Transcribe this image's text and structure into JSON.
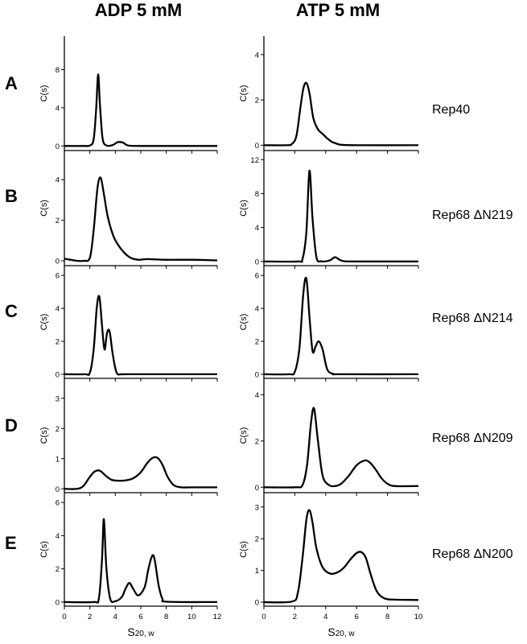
{
  "columns": [
    "ADP 5 mM",
    "ATP 5 mM"
  ],
  "rows": [
    {
      "letter": "A",
      "construct": "Rep40"
    },
    {
      "letter": "B",
      "construct": "Rep68 ΔN219"
    },
    {
      "letter": "C",
      "construct": "Rep68 ΔN214"
    },
    {
      "letter": "D",
      "construct": "Rep68 ΔN209"
    },
    {
      "letter": "E",
      "construct": "Rep68 ΔN200"
    }
  ],
  "y_axis_label": "C(s)",
  "x_axis_label": {
    "main": "S",
    "sub": "20, w"
  },
  "chart_data": {
    "type": "line",
    "grid": false,
    "xlabel": "S20, w",
    "ylabel": "C(s)",
    "columns": [
      {
        "title": "ADP 5 mM",
        "xlim": [
          0,
          12
        ],
        "xticks": [
          0,
          2,
          4,
          6,
          8,
          10,
          12
        ]
      },
      {
        "title": "ATP 5 mM",
        "xlim": [
          0,
          10
        ],
        "xticks": [
          0,
          2,
          4,
          6,
          8,
          10
        ]
      }
    ],
    "panels": [
      {
        "row": "A",
        "column": "ADP 5 mM",
        "construct": "Rep40",
        "ylim": [
          -0.4,
          11
        ],
        "yticks": [
          0,
          4,
          8
        ],
        "x": [
          0,
          1.5,
          2.0,
          2.3,
          2.5,
          2.65,
          2.8,
          3.0,
          3.3,
          3.8,
          4.2,
          4.6,
          5.0,
          6,
          8,
          12
        ],
        "y": [
          0,
          0,
          0.05,
          0.7,
          4.0,
          7.5,
          4.2,
          0.8,
          0.05,
          0.1,
          0.4,
          0.35,
          0.05,
          0,
          0,
          0
        ]
      },
      {
        "row": "A",
        "column": "ATP 5 mM",
        "construct": "Rep40",
        "ylim": [
          -0.2,
          4.6
        ],
        "yticks": [
          0,
          2,
          4
        ],
        "x": [
          0,
          1.5,
          1.8,
          2.1,
          2.35,
          2.55,
          2.75,
          2.95,
          3.2,
          3.5,
          3.8,
          4.1,
          4.4,
          4.7,
          5.0,
          6,
          10
        ],
        "y": [
          0,
          0,
          0.05,
          0.4,
          1.6,
          2.5,
          2.75,
          2.3,
          1.2,
          0.7,
          0.5,
          0.3,
          0.15,
          0.07,
          0.02,
          0,
          0
        ]
      },
      {
        "row": "B",
        "column": "ADP 5 mM",
        "construct": "Rep68 ΔN219",
        "ylim": [
          -0.2,
          5.2
        ],
        "yticks": [
          0,
          2,
          4
        ],
        "x": [
          0,
          0.5,
          1.0,
          1.5,
          2.0,
          2.3,
          2.6,
          2.85,
          3.1,
          3.4,
          3.8,
          4.2,
          4.7,
          5.2,
          5.8,
          6.5,
          8,
          10,
          12
        ],
        "y": [
          0.1,
          0.05,
          0.0,
          0.0,
          0.15,
          1.5,
          3.6,
          4.1,
          3.3,
          2.2,
          1.3,
          0.8,
          0.4,
          0.15,
          0.05,
          0.08,
          0.05,
          0.05,
          0.02
        ]
      },
      {
        "row": "B",
        "column": "ATP 5 mM",
        "construct": "Rep68 ΔN219",
        "ylim": [
          -0.4,
          12.5
        ],
        "yticks": [
          0,
          4,
          8,
          12
        ],
        "x": [
          0,
          2.2,
          2.5,
          2.75,
          2.95,
          3.15,
          3.4,
          3.7,
          4.0,
          4.3,
          4.6,
          4.9,
          5.2,
          6,
          10
        ],
        "y": [
          0,
          0,
          0.3,
          3.5,
          10.7,
          5.0,
          0.5,
          0.03,
          0.02,
          0.15,
          0.5,
          0.2,
          0.03,
          0,
          0
        ]
      },
      {
        "row": "C",
        "column": "ADP 5 mM",
        "construct": "Rep68 ΔN214",
        "ylim": [
          -0.2,
          6.3
        ],
        "yticks": [
          0,
          2,
          4,
          6
        ],
        "x": [
          0,
          1.6,
          2.0,
          2.3,
          2.55,
          2.75,
          2.95,
          3.15,
          3.35,
          3.55,
          3.8,
          4.1,
          4.5,
          5,
          12
        ],
        "y": [
          0,
          0,
          0.1,
          1.5,
          4.1,
          4.7,
          3.0,
          1.5,
          2.5,
          2.6,
          1.2,
          0.1,
          0,
          0,
          0
        ]
      },
      {
        "row": "C",
        "column": "ATP 5 mM",
        "construct": "Rep68 ΔN214",
        "ylim": [
          -0.2,
          6.3
        ],
        "yticks": [
          0,
          2,
          4,
          6
        ],
        "x": [
          0,
          1.6,
          2.0,
          2.3,
          2.55,
          2.75,
          2.95,
          3.15,
          3.35,
          3.55,
          3.8,
          4.1,
          4.5,
          5,
          10
        ],
        "y": [
          0,
          0,
          0.15,
          1.6,
          4.9,
          5.8,
          3.5,
          1.4,
          1.7,
          2.0,
          1.5,
          0.3,
          0.02,
          0,
          0
        ]
      },
      {
        "row": "D",
        "column": "ADP 5 mM",
        "construct": "Rep68 ΔN209",
        "ylim": [
          -0.1,
          3.5
        ],
        "yticks": [
          0,
          1,
          2,
          3
        ],
        "x": [
          0,
          1,
          1.5,
          2.0,
          2.4,
          2.8,
          3.2,
          3.7,
          4.2,
          4.8,
          5.4,
          6.0,
          6.5,
          6.9,
          7.3,
          7.7,
          8.1,
          8.6,
          9.2,
          10,
          12
        ],
        "y": [
          0,
          0.0,
          0.1,
          0.4,
          0.58,
          0.6,
          0.45,
          0.3,
          0.27,
          0.28,
          0.35,
          0.55,
          0.85,
          1.02,
          1.03,
          0.8,
          0.4,
          0.12,
          0.05,
          0.05,
          0.05
        ]
      },
      {
        "row": "D",
        "column": "ATP 5 mM",
        "construct": "Rep68 ΔN209",
        "ylim": [
          -0.2,
          4.5
        ],
        "yticks": [
          0,
          2,
          4
        ],
        "x": [
          0,
          2.0,
          2.5,
          2.8,
          3.05,
          3.25,
          3.5,
          3.8,
          4.2,
          4.6,
          5.0,
          5.5,
          6.0,
          6.5,
          6.8,
          7.2,
          7.6,
          8.0,
          8.5,
          10
        ],
        "y": [
          0,
          0,
          0.1,
          1.0,
          2.8,
          3.4,
          2.0,
          0.5,
          0.1,
          0.05,
          0.15,
          0.5,
          0.95,
          1.15,
          1.1,
          0.8,
          0.4,
          0.15,
          0.05,
          0.05
        ]
      },
      {
        "row": "E",
        "column": "ADP 5 mM",
        "construct": "Rep68 ΔN200",
        "ylim": [
          -0.2,
          6.3
        ],
        "yticks": [
          0,
          2,
          4,
          6
        ],
        "x": [
          0,
          2.3,
          2.7,
          2.95,
          3.1,
          3.3,
          3.6,
          4.0,
          4.5,
          4.8,
          5.1,
          5.4,
          5.8,
          6.3,
          6.6,
          6.9,
          7.1,
          7.4,
          7.7,
          8.1,
          12
        ],
        "y": [
          0,
          0,
          0.2,
          2.5,
          5.0,
          2.0,
          0.2,
          0.05,
          0.3,
          0.8,
          1.15,
          0.8,
          0.4,
          0.9,
          2.0,
          2.8,
          2.5,
          1.0,
          0.2,
          0.02,
          0
        ]
      },
      {
        "row": "E",
        "column": "ATP 5 mM",
        "construct": "Rep68 ΔN200",
        "ylim": [
          -0.1,
          3.3
        ],
        "yticks": [
          0,
          1,
          2,
          3
        ],
        "x": [
          0,
          1.8,
          2.2,
          2.5,
          2.75,
          2.95,
          3.15,
          3.4,
          3.8,
          4.3,
          4.8,
          5.2,
          5.6,
          6.0,
          6.3,
          6.6,
          6.9,
          7.3,
          7.8,
          8.5,
          10
        ],
        "y": [
          0,
          0.02,
          0.3,
          1.4,
          2.6,
          2.9,
          2.5,
          1.7,
          1.1,
          0.9,
          0.95,
          1.1,
          1.35,
          1.55,
          1.58,
          1.4,
          0.9,
          0.35,
          0.12,
          0.08,
          0.07
        ]
      }
    ]
  }
}
